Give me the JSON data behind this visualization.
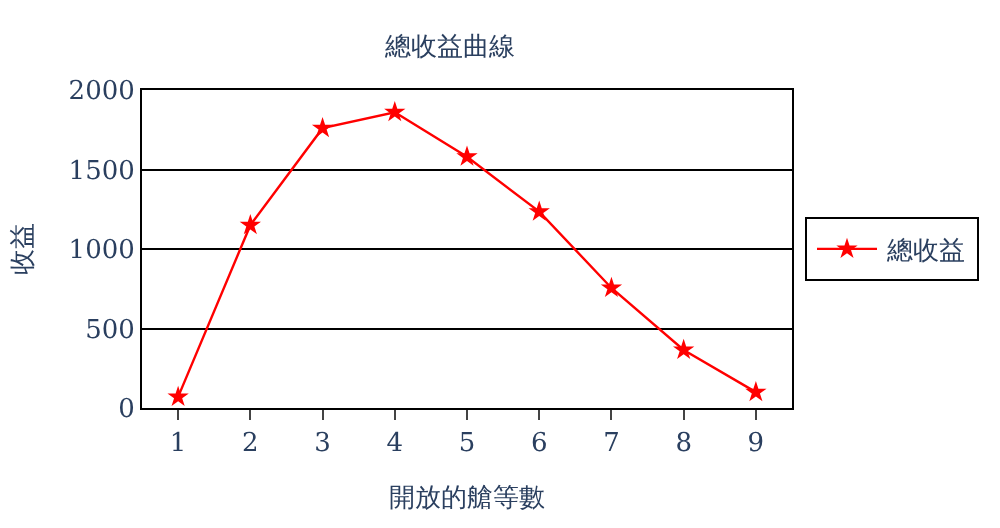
{
  "chart_data": {
    "type": "line",
    "title": "總收益曲線",
    "xlabel": "開放的艙等數",
    "ylabel": "收益",
    "categories": [
      "1",
      "2",
      "3",
      "4",
      "5",
      "6",
      "7",
      "8",
      "9"
    ],
    "series": [
      {
        "name": "總收益",
        "color": "#ff0000",
        "values": [
          70,
          1150,
          1760,
          1860,
          1580,
          1235,
          755,
          365,
          100
        ]
      }
    ],
    "ylim": [
      0,
      2000
    ],
    "yticks": [
      0,
      500,
      1000,
      1500,
      2000
    ],
    "grid": "y",
    "legend": "right",
    "marker": "star",
    "line_style": "solid"
  }
}
